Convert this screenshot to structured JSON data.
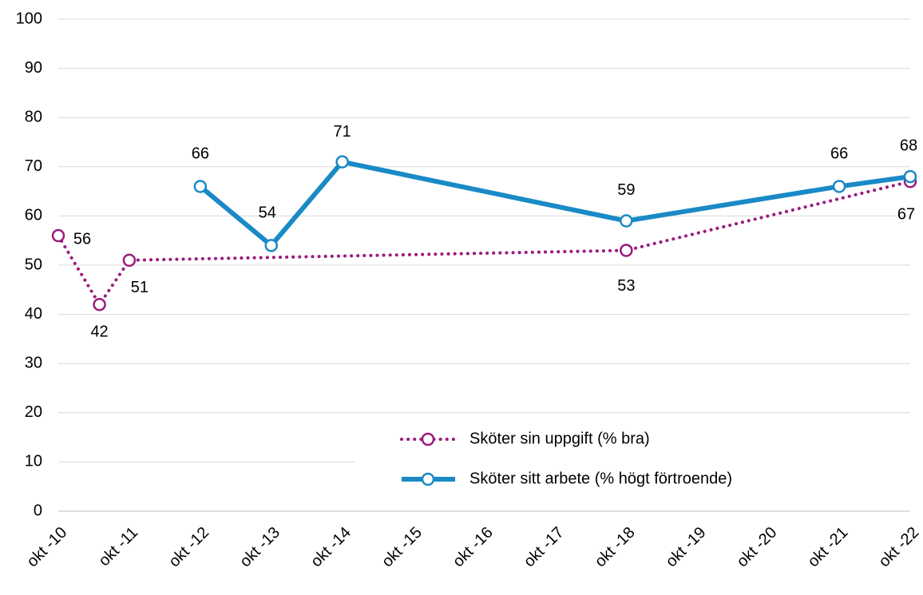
{
  "chart_data": {
    "type": "line",
    "xlim": [
      2010,
      2022
    ],
    "xticks": [
      {
        "value": 2010,
        "label": "okt -10"
      },
      {
        "value": 2011,
        "label": "okt -11"
      },
      {
        "value": 2012,
        "label": "okt -12"
      },
      {
        "value": 2013,
        "label": "okt -13"
      },
      {
        "value": 2014,
        "label": "okt -14"
      },
      {
        "value": 2015,
        "label": "okt -15"
      },
      {
        "value": 2016,
        "label": "okt -16"
      },
      {
        "value": 2017,
        "label": "okt -17"
      },
      {
        "value": 2018,
        "label": "okt -18"
      },
      {
        "value": 2019,
        "label": "okt -19"
      },
      {
        "value": 2020,
        "label": "okt -20"
      },
      {
        "value": 2021,
        "label": "okt -21"
      },
      {
        "value": 2022,
        "label": "okt -22"
      }
    ],
    "ylim": [
      0,
      100
    ],
    "yticks": [
      0,
      10,
      20,
      30,
      40,
      50,
      60,
      70,
      80,
      90,
      100
    ],
    "grid": true,
    "legend": "lower right",
    "series": [
      {
        "name": "Sköter sin uppgift (% bra)",
        "color": "#9b1b7d",
        "style": "dotted",
        "x": [
          2010,
          2010.58,
          2011,
          2018,
          2022
        ],
        "values": [
          56,
          42,
          51,
          53,
          67
        ]
      },
      {
        "name": "Sköter sitt arbete (% högt förtroende)",
        "color": "#1a8ac6",
        "style": "solid",
        "x": [
          2012,
          2013,
          2014,
          2018,
          2021,
          2022
        ],
        "values": [
          66,
          54,
          71,
          59,
          66,
          68
        ]
      }
    ]
  }
}
